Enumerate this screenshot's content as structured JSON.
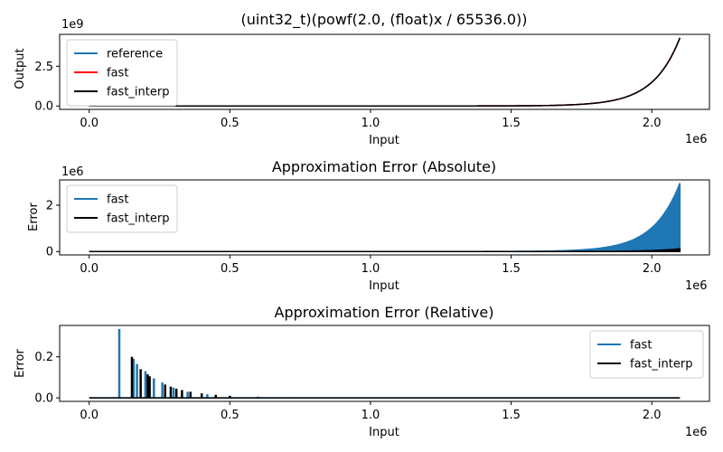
{
  "chart_data": [
    {
      "type": "line",
      "title": "(uint32_t)(powf(2.0, (float)x / 65536.0))",
      "xlabel": "Input",
      "ylabel": "Output",
      "x_offset": "1e6",
      "y_offset": "1e9",
      "xlim": [
        -0.105,
        2.205
      ],
      "ylim": [
        -0.215,
        4.51
      ],
      "x_ticks": [
        0,
        0.5,
        1.0,
        1.5,
        2.0
      ],
      "x_tick_labels": [
        "0.0",
        "0.5",
        "1.0",
        "1.5",
        "2.0"
      ],
      "y_ticks": [
        0,
        2.5
      ],
      "y_tick_labels": [
        "0.0",
        "2.5"
      ],
      "legend": {
        "position": "upper-left",
        "entries": [
          "reference",
          "fast",
          "fast_interp"
        ]
      },
      "series": [
        {
          "name": "reference",
          "color": "#1f77b4",
          "curve": "exp2",
          "x": [
            0,
            2.1
          ],
          "scale_in_1e9": 4.295
        },
        {
          "name": "fast",
          "color": "#ff0000",
          "curve": "exp2",
          "x": [
            0,
            2.1
          ],
          "scale_in_1e9": 4.295
        },
        {
          "name": "fast_interp",
          "color": "#000000",
          "curve": "exp2",
          "x": [
            0,
            2.1
          ],
          "scale_in_1e9": 4.295
        }
      ],
      "grid": false
    },
    {
      "type": "line",
      "title": "Approximation Error (Absolute)",
      "xlabel": "Input",
      "ylabel": "Error",
      "x_offset": "1e6",
      "y_offset": "1e6",
      "xlim": [
        -0.105,
        2.205
      ],
      "ylim": [
        -0.147,
        3.09
      ],
      "x_ticks": [
        0,
        0.5,
        1.0,
        1.5,
        2.0
      ],
      "x_tick_labels": [
        "0.0",
        "0.5",
        "1.0",
        "1.5",
        "2.0"
      ],
      "y_ticks": [
        0,
        2
      ],
      "y_tick_labels": [
        "0",
        "2"
      ],
      "legend": {
        "position": "upper-left",
        "entries": [
          "fast",
          "fast_interp"
        ]
      },
      "series": [
        {
          "name": "fast",
          "color": "#1f77b4",
          "curve": "exp2-band",
          "x": [
            0,
            2.1
          ],
          "peak": 2.95
        },
        {
          "name": "fast_interp",
          "color": "#000000",
          "curve": "exp2-band",
          "x": [
            0,
            2.1
          ],
          "peak": 0.12
        }
      ],
      "grid": false
    },
    {
      "type": "line",
      "title": "Approximation Error (Relative)",
      "xlabel": "Input",
      "ylabel": "Error",
      "x_offset": "1e6",
      "xlim": [
        -0.105,
        2.205
      ],
      "ylim": [
        -0.017,
        0.353
      ],
      "x_ticks": [
        0,
        0.5,
        1.0,
        1.5,
        2.0
      ],
      "x_tick_labels": [
        "0.0",
        "0.5",
        "1.0",
        "1.5",
        "2.0"
      ],
      "y_ticks": [
        0,
        0.2
      ],
      "y_tick_labels": [
        "0.0",
        "0.2"
      ],
      "legend": {
        "position": "upper-right",
        "entries": [
          "fast",
          "fast_interp"
        ]
      },
      "series": [
        {
          "name": "fast",
          "color": "#1f77b4",
          "spikes": [
            [
              0.107,
              0.336
            ],
            [
              0.158,
              0.19
            ],
            [
              0.17,
              0.165
            ],
            [
              0.2,
              0.13
            ],
            [
              0.23,
              0.095
            ],
            [
              0.26,
              0.075
            ],
            [
              0.3,
              0.05
            ],
            [
              0.35,
              0.03
            ],
            [
              0.42,
              0.018
            ],
            [
              0.5,
              0.01
            ],
            [
              0.6,
              0.006
            ],
            [
              0.72,
              0.003
            ],
            [
              0.78,
              0.002
            ]
          ]
        },
        {
          "name": "fast_interp",
          "color": "#000000",
          "spikes": [
            [
              0.152,
              0.2
            ],
            [
              0.183,
              0.14
            ],
            [
              0.208,
              0.115
            ],
            [
              0.215,
              0.105
            ],
            [
              0.27,
              0.065
            ],
            [
              0.29,
              0.055
            ],
            [
              0.31,
              0.045
            ],
            [
              0.33,
              0.038
            ],
            [
              0.36,
              0.03
            ],
            [
              0.4,
              0.022
            ],
            [
              0.45,
              0.015
            ],
            [
              0.5,
              0.01
            ]
          ]
        }
      ],
      "grid": false
    }
  ]
}
